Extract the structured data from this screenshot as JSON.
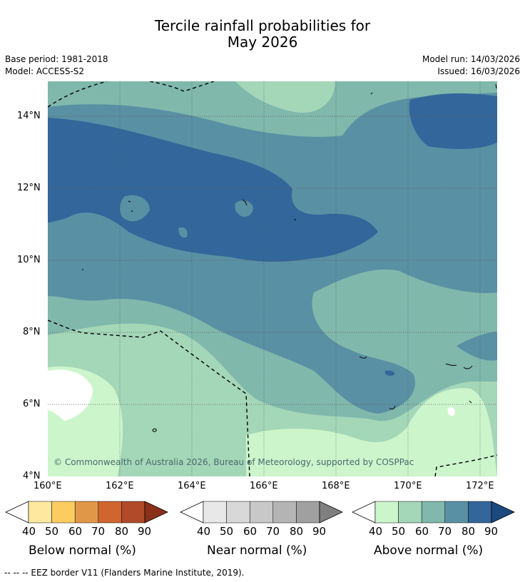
{
  "title_line1": "Tercile rainfall probabilities for",
  "title_line2": "May 2026",
  "base_period": "Base period: 1981-2018",
  "model": "Model: ACCESS-S2",
  "model_run": "Model run: 14/03/2026",
  "issued": "Issued: 16/03/2026",
  "copyright": "© Commonwealth of Australia 2026, Bureau of Meteorology, supported by COSPPac",
  "lat_ticks": [
    "14°N",
    "12°N",
    "10°N",
    "8°N",
    "6°N",
    "4°N"
  ],
  "lon_ticks": [
    "160°E",
    "162°E",
    "164°E",
    "166°E",
    "168°E",
    "170°E",
    "172°E"
  ],
  "colorbars": [
    {
      "title": "Below normal (%)",
      "labels": [
        "40",
        "50",
        "60",
        "70",
        "80",
        "90"
      ],
      "colors": [
        "#ffffff",
        "#fee8a0",
        "#fdcc60",
        "#e09848",
        "#d06530",
        "#b04a28",
        "#8a3018"
      ]
    },
    {
      "title": "Near normal (%)",
      "labels": [
        "40",
        "50",
        "60",
        "70",
        "80",
        "90"
      ],
      "colors": [
        "#ffffff",
        "#e8e8e8",
        "#d8d8d8",
        "#c8c8c8",
        "#b4b4b4",
        "#a0a0a0",
        "#808080"
      ]
    },
    {
      "title": "Above normal (%)",
      "labels": [
        "40",
        "50",
        "60",
        "70",
        "80",
        "90"
      ],
      "colors": [
        "#ffffff",
        "#ccf5cc",
        "#a4d6b8",
        "#80b8ac",
        "#5a90a4",
        "#33669a",
        "#1a4a80"
      ]
    }
  ],
  "footer": "--  --  -- EEZ border V11 (Flanders Marine Institute, 2019)."
}
